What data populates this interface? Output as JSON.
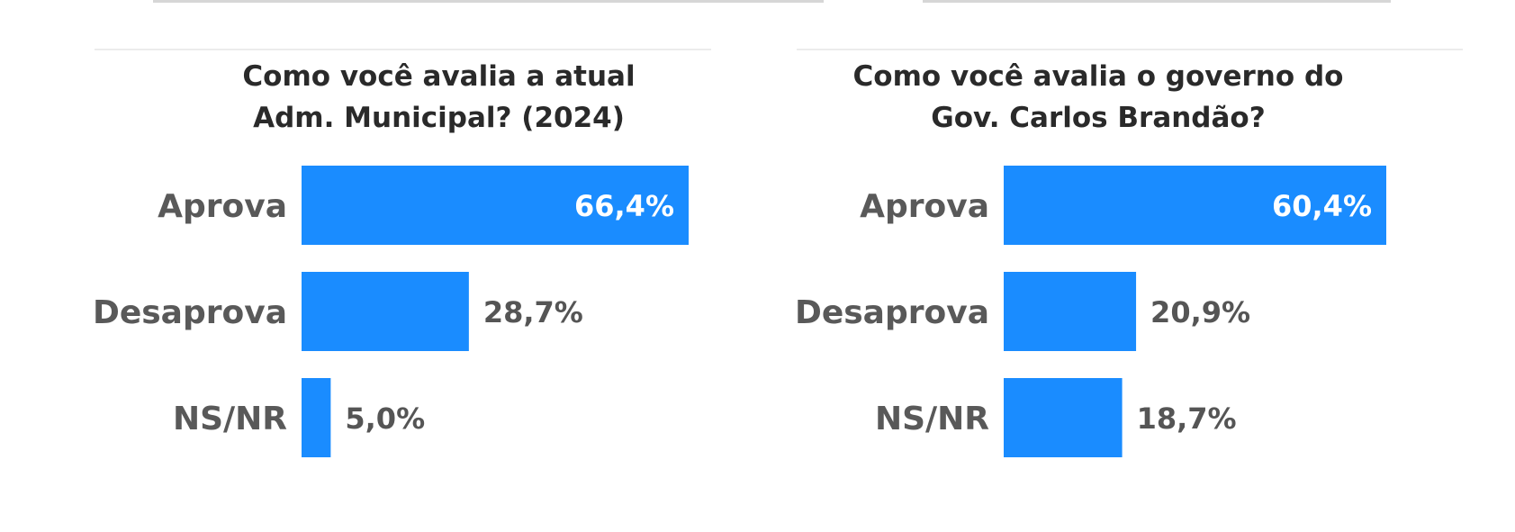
{
  "colors": {
    "bar": "#1a8cff",
    "label_inside": "#ffffff",
    "label_outside": "#555555",
    "category_text": "#595959",
    "title_text": "#2a2a2a"
  },
  "chart_data": [
    {
      "type": "bar",
      "orientation": "horizontal",
      "title": "Como você avalia a atual Adm. Municipal? (2024)",
      "categories": [
        "Aprova",
        "Desaprova",
        "NS/NR"
      ],
      "values": [
        66.4,
        28.7,
        5.0
      ],
      "data_labels": [
        "66,4%",
        "28,7%",
        "5,0%"
      ],
      "xlim": [
        0,
        66.4
      ],
      "grid": false,
      "legend": "none"
    },
    {
      "type": "bar",
      "orientation": "horizontal",
      "title": "Como você avalia o governo do Gov. Carlos Brandão?",
      "categories": [
        "Aprova",
        "Desaprova",
        "NS/NR"
      ],
      "values": [
        60.4,
        20.9,
        18.7
      ],
      "data_labels": [
        "60,4%",
        "20,9%",
        "18,7%"
      ],
      "xlim": [
        0,
        60.4
      ],
      "grid": false,
      "legend": "none"
    }
  ]
}
